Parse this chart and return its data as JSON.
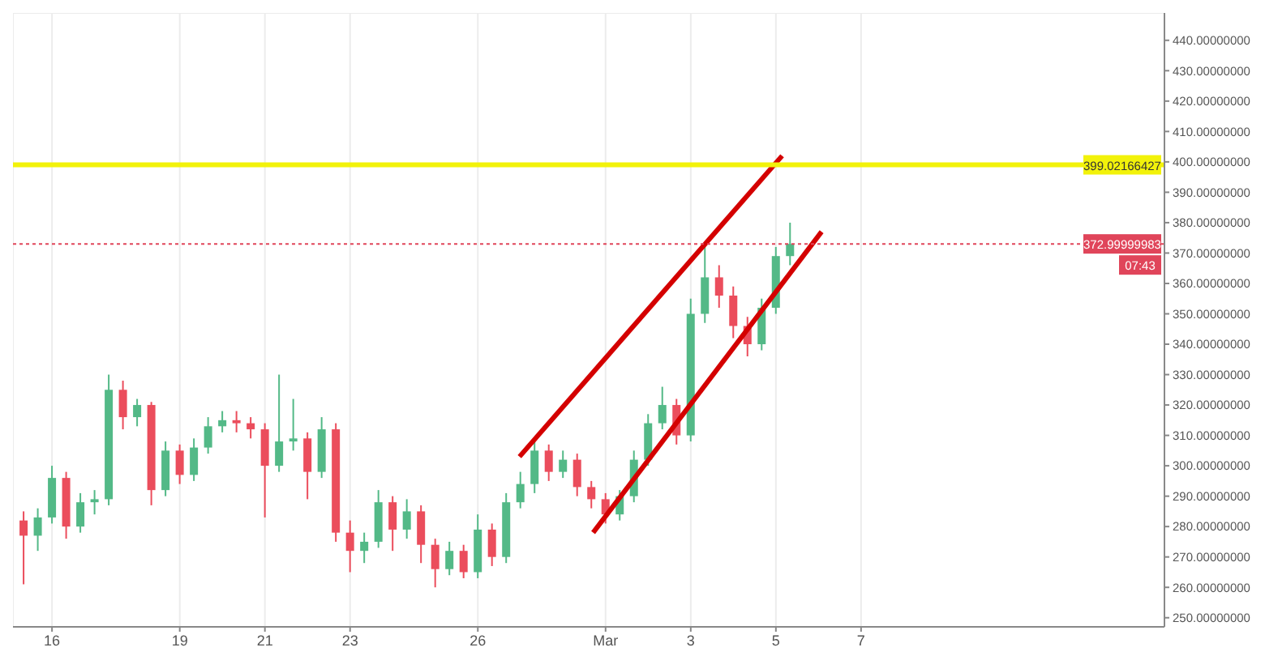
{
  "chart_data": {
    "type": "candlestick",
    "x": [
      "--02-15T08:00",
      "--02-15T16:00",
      "--02-16T00:00",
      "--02-16T08:00",
      "--02-16T16:00",
      "--02-17T00:00",
      "--02-17T08:00",
      "--02-17T16:00",
      "--02-18T00:00",
      "--02-18T08:00",
      "--02-18T16:00",
      "--02-19T00:00",
      "--02-19T08:00",
      "--02-19T16:00",
      "--02-20T00:00",
      "--02-20T08:00",
      "--02-20T16:00",
      "--02-21T00:00",
      "--02-21T08:00",
      "--02-21T16:00",
      "--02-22T00:00",
      "--02-22T08:00",
      "--02-22T16:00",
      "--02-23T00:00",
      "--02-23T08:00",
      "--02-23T16:00",
      "--02-24T00:00",
      "--02-24T08:00",
      "--02-24T16:00",
      "--02-25T00:00",
      "--02-25T08:00",
      "--02-25T16:00",
      "--02-26T00:00",
      "--02-26T08:00",
      "--02-26T16:00",
      "--02-27T00:00",
      "--02-27T08:00",
      "--02-27T16:00",
      "--02-28T00:00",
      "--02-28T08:00",
      "--02-28T16:00",
      "--03-01T00:00",
      "--03-01T08:00",
      "--03-01T16:00",
      "--03-02T00:00",
      "--03-02T08:00",
      "--03-02T16:00",
      "--03-03T00:00",
      "--03-03T08:00",
      "--03-03T16:00",
      "--03-04T00:00",
      "--03-04T08:00",
      "--03-04T16:00",
      "--03-05T00:00",
      "--03-05T08:00"
    ],
    "ohlc": [
      [
        282,
        285,
        261,
        277
      ],
      [
        277,
        286,
        272,
        283
      ],
      [
        283,
        300,
        281,
        296
      ],
      [
        296,
        298,
        276,
        280
      ],
      [
        280,
        291,
        278,
        288
      ],
      [
        288,
        292,
        284,
        289
      ],
      [
        289,
        330,
        287,
        325
      ],
      [
        325,
        328,
        312,
        316
      ],
      [
        316,
        322,
        313,
        320
      ],
      [
        320,
        321,
        287,
        292
      ],
      [
        292,
        308,
        290,
        305
      ],
      [
        305,
        307,
        294,
        297
      ],
      [
        297,
        309,
        295,
        306
      ],
      [
        306,
        316,
        304,
        313
      ],
      [
        313,
        318,
        311,
        315
      ],
      [
        315,
        318,
        311,
        314
      ],
      [
        314,
        316,
        309,
        312
      ],
      [
        312,
        314,
        283,
        300
      ],
      [
        300,
        330,
        298,
        308
      ],
      [
        308,
        322,
        305,
        309
      ],
      [
        309,
        311,
        289,
        298
      ],
      [
        298,
        316,
        296,
        312
      ],
      [
        312,
        314,
        275,
        278
      ],
      [
        278,
        282,
        265,
        272
      ],
      [
        272,
        278,
        268,
        275
      ],
      [
        275,
        292,
        273,
        288
      ],
      [
        288,
        290,
        272,
        279
      ],
      [
        279,
        289,
        276,
        285
      ],
      [
        285,
        287,
        268,
        274
      ],
      [
        274,
        276,
        260,
        266
      ],
      [
        266,
        275,
        264,
        272
      ],
      [
        272,
        274,
        263,
        265
      ],
      [
        265,
        284,
        263,
        279
      ],
      [
        279,
        281,
        267,
        270
      ],
      [
        270,
        291,
        268,
        288
      ],
      [
        288,
        298,
        286,
        294
      ],
      [
        294,
        308,
        291,
        305
      ],
      [
        305,
        307,
        295,
        298
      ],
      [
        298,
        305,
        296,
        302
      ],
      [
        302,
        304,
        290,
        293
      ],
      [
        293,
        295,
        286,
        289
      ],
      [
        289,
        291,
        281,
        284
      ],
      [
        284,
        292,
        282,
        290
      ],
      [
        290,
        305,
        288,
        302
      ],
      [
        302,
        317,
        300,
        314
      ],
      [
        314,
        326,
        312,
        320
      ],
      [
        320,
        322,
        307,
        310
      ],
      [
        310,
        355,
        308,
        350
      ],
      [
        350,
        373,
        347,
        362
      ],
      [
        362,
        366,
        352,
        356
      ],
      [
        356,
        359,
        342,
        346
      ],
      [
        346,
        349,
        336,
        340
      ],
      [
        340,
        355,
        338,
        352
      ],
      [
        352,
        372,
        350,
        369
      ],
      [
        369,
        380,
        366,
        373
      ]
    ],
    "colors": [
      "#eb4d5c",
      "#53b987",
      "#53b987",
      "#eb4d5c",
      "#53b987",
      "#53b987",
      "#53b987",
      "#eb4d5c",
      "#53b987",
      "#eb4d5c",
      "#53b987",
      "#eb4d5c",
      "#53b987",
      "#53b987",
      "#53b987",
      "#eb4d5c",
      "#eb4d5c",
      "#eb4d5c",
      "#53b987",
      "#53b987",
      "#eb4d5c",
      "#53b987",
      "#eb4d5c",
      "#eb4d5c",
      "#53b987",
      "#53b987",
      "#eb4d5c",
      "#53b987",
      "#eb4d5c",
      "#eb4d5c",
      "#53b987",
      "#eb4d5c",
      "#53b987",
      "#eb4d5c",
      "#53b987",
      "#53b987",
      "#53b987",
      "#eb4d5c",
      "#53b987",
      "#eb4d5c",
      "#eb4d5c",
      "#eb4d5c",
      "#53b987",
      "#53b987",
      "#53b987",
      "#53b987",
      "#eb4d5c",
      "#53b987",
      "#53b987",
      "#eb4d5c",
      "#eb4d5c",
      "#eb4d5c",
      "#53b987",
      "#53b987",
      "#53b987"
    ],
    "series": [
      {
        "type": "line",
        "color": "#d40000",
        "x": [
          "--02-26T23:30",
          "--03-05T03:30"
        ],
        "values": [
          303,
          402
        ]
      },
      {
        "type": "line",
        "color": "#d40000",
        "x": [
          "--02-28T17:00",
          "--03-06T01:45"
        ],
        "values": [
          278,
          377
        ]
      }
    ],
    "ref_lines": [
      {
        "axis": "y",
        "value": 399.02166427,
        "label": "399.02166427",
        "color": "#f2f20a",
        "line_style": "solid"
      },
      {
        "axis": "y",
        "value": 372.99999983,
        "label": "372.99999983",
        "color": "#e0455a",
        "line_style": "dotted"
      }
    ],
    "annotations": [
      "07:43"
    ],
    "xlim": [
      "--02-15T02:00",
      "--03-14T03:00"
    ],
    "xticks": [
      {
        "value": "--02-16",
        "label": "16"
      },
      {
        "value": "--02-19",
        "label": "19"
      },
      {
        "value": "--02-21",
        "label": "21"
      },
      {
        "value": "--02-23",
        "label": "23"
      },
      {
        "value": "--02-26",
        "label": "26"
      },
      {
        "value": "--03-01",
        "label": "Mar"
      },
      {
        "value": "--03-03",
        "label": "3"
      },
      {
        "value": "--03-05",
        "label": "5"
      },
      {
        "value": "--03-07",
        "label": "7"
      }
    ],
    "ylim": [
      247,
      449
    ],
    "yticks": [
      {
        "value": 250,
        "label": "250.00000000"
      },
      {
        "value": 260,
        "label": "260.00000000"
      },
      {
        "value": 270,
        "label": "270.00000000"
      },
      {
        "value": 280,
        "label": "280.00000000"
      },
      {
        "value": 290,
        "label": "290.00000000"
      },
      {
        "value": 300,
        "label": "300.00000000"
      },
      {
        "value": 310,
        "label": "310.00000000"
      },
      {
        "value": 320,
        "label": "320.00000000"
      },
      {
        "value": 330,
        "label": "330.00000000"
      },
      {
        "value": 340,
        "label": "340.00000000"
      },
      {
        "value": 350,
        "label": "350.00000000"
      },
      {
        "value": 360,
        "label": "360.00000000"
      },
      {
        "value": 370,
        "label": "370.00000000"
      },
      {
        "value": 380,
        "label": "380.00000000"
      },
      {
        "value": 390,
        "label": "390.00000000"
      },
      {
        "value": 400,
        "label": "400.00000000"
      },
      {
        "value": 410,
        "label": "410.00000000"
      },
      {
        "value": 420,
        "label": "420.00000000"
      },
      {
        "value": 430,
        "label": "430.00000000"
      },
      {
        "value": 440,
        "label": "440.00000000"
      }
    ],
    "grid": true
  }
}
